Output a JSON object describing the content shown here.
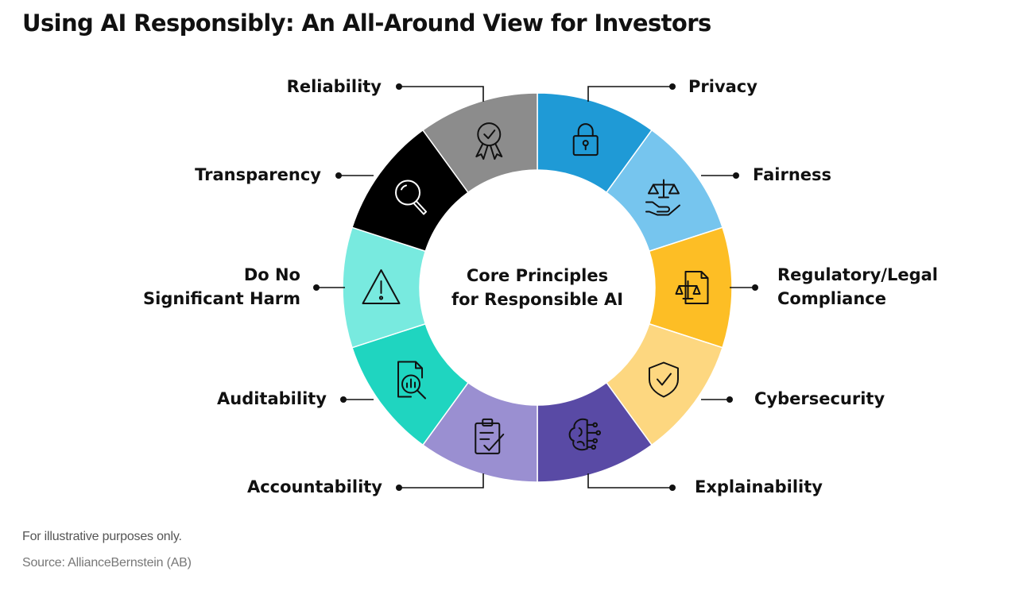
{
  "title": "Using AI Responsibly: An All-Around View for Investors",
  "center": {
    "line1": "Core Principles",
    "line2": "for Responsible AI"
  },
  "segments": [
    {
      "label_lines": [
        "Privacy"
      ],
      "color": "#1f9ad6",
      "icon": "lock-icon"
    },
    {
      "label_lines": [
        "Fairness"
      ],
      "color": "#76c5ee",
      "icon": "scales-hand-icon"
    },
    {
      "label_lines": [
        "Regulatory/Legal",
        "Compliance"
      ],
      "color": "#fdbe25",
      "icon": "legal-document-icon"
    },
    {
      "label_lines": [
        "Cybersecurity"
      ],
      "color": "#fdd780",
      "icon": "shield-check-icon"
    },
    {
      "label_lines": [
        "Explainability"
      ],
      "color": "#594aa5",
      "icon": "brain-circuit-icon"
    },
    {
      "label_lines": [
        "Accountability"
      ],
      "color": "#9a8fd1",
      "icon": "clipboard-check-icon"
    },
    {
      "label_lines": [
        "Auditability"
      ],
      "color": "#1fd5c0",
      "icon": "document-search-icon"
    },
    {
      "label_lines": [
        "Do No",
        "Significant Harm"
      ],
      "color": "#78eadf",
      "icon": "warning-icon"
    },
    {
      "label_lines": [
        "Transparency"
      ],
      "color": "#000000",
      "icon": "magnifier-icon"
    },
    {
      "label_lines": [
        "Reliability"
      ],
      "color": "#8c8c8c",
      "icon": "award-ribbon-icon"
    }
  ],
  "footnote": "For illustrative purposes only.",
  "source": "Source: AllianceBernstein (AB)"
}
